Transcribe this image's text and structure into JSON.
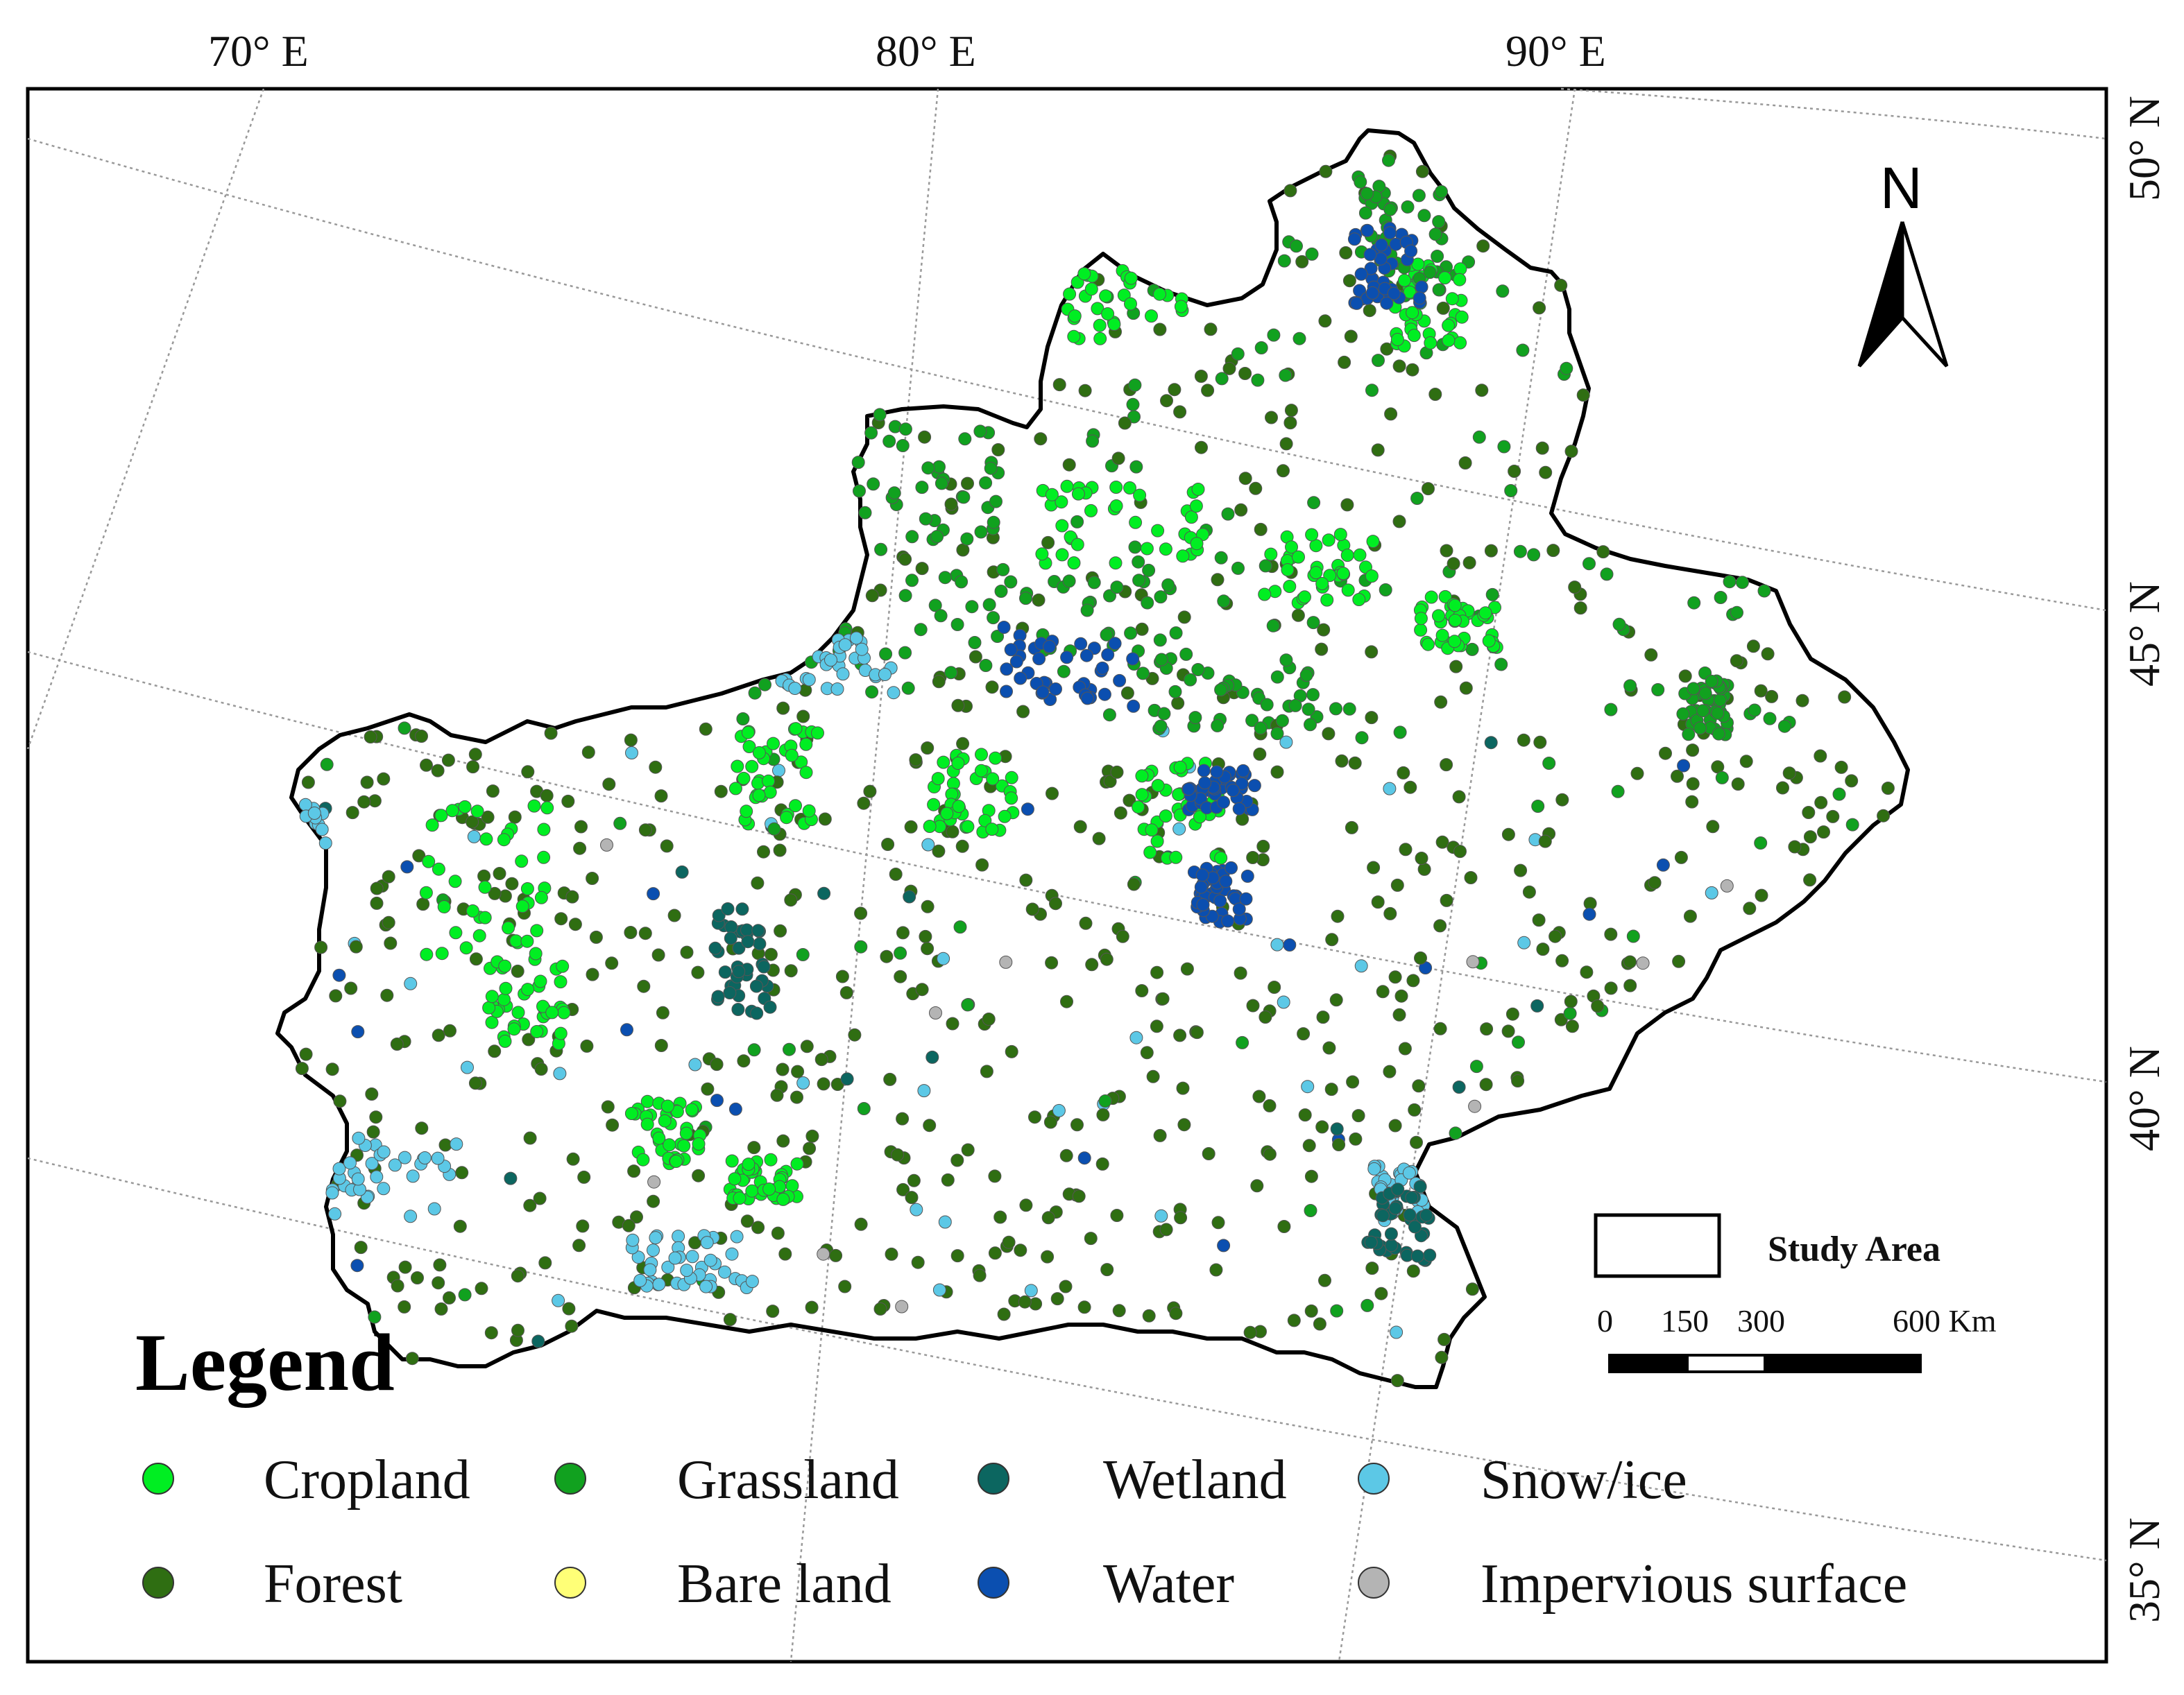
{
  "graticule": {
    "longitudes": [
      "70° E",
      "80° E",
      "90° E"
    ],
    "latitudes": [
      "50° N",
      "45° N",
      "40° N",
      "35° N"
    ]
  },
  "north_arrow": {
    "label": "N"
  },
  "study_area": {
    "label": "Study Area"
  },
  "scale_bar": {
    "ticks": [
      "0",
      "150",
      "300",
      "600 Km"
    ]
  },
  "legend": {
    "title": "Legend",
    "items": [
      {
        "label": "Cropland",
        "color": "#00ee22"
      },
      {
        "label": "Grassland",
        "color": "#11a11f"
      },
      {
        "label": "Wetland",
        "color": "#0c6660"
      },
      {
        "label": "Snow/ice",
        "color": "#5cc8e6"
      },
      {
        "label": "Forest",
        "color": "#2f6e12"
      },
      {
        "label": "Bare land",
        "color": "#ffff77"
      },
      {
        "label": "Water",
        "color": "#0b4fb0"
      },
      {
        "label": "Impervious surface",
        "color": "#b4b4b4"
      }
    ]
  },
  "colors": {
    "boundary": "#000000",
    "graticule": "#999999"
  }
}
